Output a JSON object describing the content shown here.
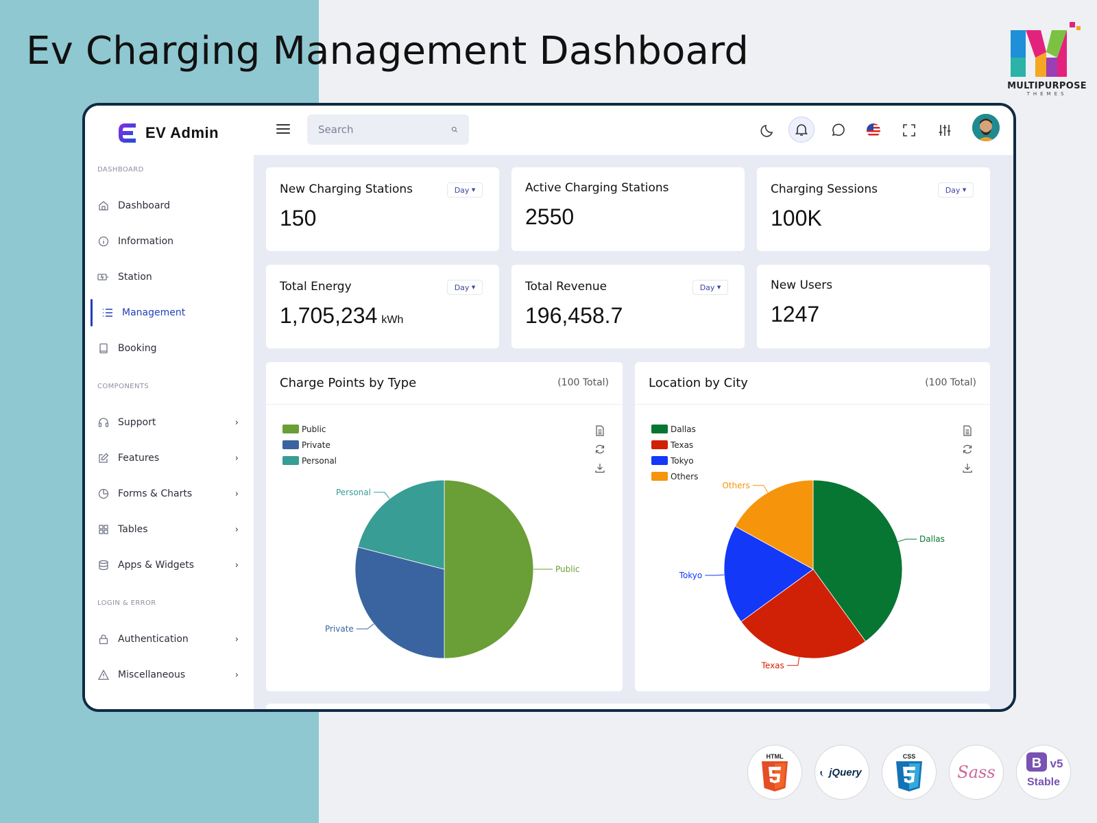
{
  "page": {
    "title": "Ev Charging Management Dashboard"
  },
  "brand": {
    "name": "MULTIPURPOSE",
    "sub": "THEMES"
  },
  "app": {
    "logo_text": "EV Admin"
  },
  "search": {
    "placeholder": "Search"
  },
  "sidebar": {
    "sections": [
      "DASHBOARD",
      "COMPONENTS",
      "LOGIN & ERROR"
    ],
    "items": [
      {
        "label": "Dashboard",
        "icon": "home-icon"
      },
      {
        "label": "Information",
        "icon": "info-icon"
      },
      {
        "label": "Station",
        "icon": "charging-station-icon"
      },
      {
        "label": "Management",
        "icon": "list-icon"
      },
      {
        "label": "Booking",
        "icon": "book-icon"
      },
      {
        "label": "Support",
        "icon": "headset-icon"
      },
      {
        "label": "Features",
        "icon": "edit-icon"
      },
      {
        "label": "Forms & Charts",
        "icon": "pie-chart-icon"
      },
      {
        "label": "Tables",
        "icon": "grid-icon"
      },
      {
        "label": "Apps & Widgets",
        "icon": "database-icon"
      },
      {
        "label": "Authentication",
        "icon": "lock-icon"
      },
      {
        "label": "Miscellaneous",
        "icon": "warning-icon"
      }
    ],
    "active": "Management"
  },
  "stats": [
    {
      "title": "New Charging Stations",
      "value": "150",
      "filter": "Day"
    },
    {
      "title": "Active Charging Stations",
      "value": "2550"
    },
    {
      "title": "Charging Sessions",
      "value": "100K",
      "filter": "Day"
    },
    {
      "title": "Total Energy",
      "value": "1,705,234",
      "unit": "kWh",
      "filter": "Day"
    },
    {
      "title": "Total Revenue",
      "value": "196,458.7",
      "filter": "Day"
    },
    {
      "title": "New Users",
      "value": "1247"
    }
  ],
  "chart_data": [
    {
      "type": "pie",
      "title": "Charge Points by Type",
      "total_label": "(100 Total)",
      "categories": [
        "Public",
        "Private",
        "Personal"
      ],
      "values": [
        50,
        29,
        21
      ],
      "colors": [
        "#6a9e36",
        "#3a64a0",
        "#389d94"
      ]
    },
    {
      "type": "pie",
      "title": "Location by City",
      "total_label": "(100 Total)",
      "categories": [
        "Dallas",
        "Texas",
        "Tokyo",
        "Others"
      ],
      "values": [
        40,
        25,
        18,
        17
      ],
      "colors": [
        "#067632",
        "#d02006",
        "#1438f8",
        "#f6940c"
      ]
    }
  ],
  "tech_badges": [
    {
      "label": "HTML",
      "icon": "html5-icon"
    },
    {
      "label": "jQuery",
      "icon": "jquery-icon"
    },
    {
      "label": "CSS",
      "icon": "css3-icon"
    },
    {
      "label": "Sass",
      "icon": "sass-icon"
    },
    {
      "label": "Stable",
      "icon": "bootstrap-icon",
      "version": "v5"
    }
  ]
}
